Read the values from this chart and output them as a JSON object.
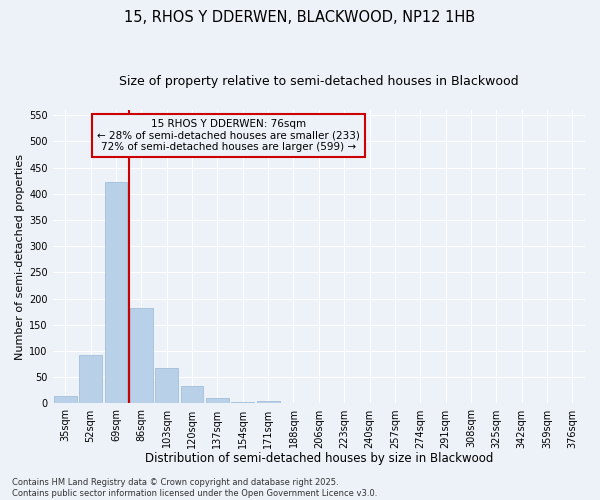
{
  "title1": "15, RHOS Y DDERWEN, BLACKWOOD, NP12 1HB",
  "title2": "Size of property relative to semi-detached houses in Blackwood",
  "xlabel": "Distribution of semi-detached houses by size in Blackwood",
  "ylabel": "Number of semi-detached properties",
  "categories": [
    "35sqm",
    "52sqm",
    "69sqm",
    "86sqm",
    "103sqm",
    "120sqm",
    "137sqm",
    "154sqm",
    "171sqm",
    "188sqm",
    "206sqm",
    "223sqm",
    "240sqm",
    "257sqm",
    "274sqm",
    "291sqm",
    "308sqm",
    "325sqm",
    "342sqm",
    "359sqm",
    "376sqm"
  ],
  "values": [
    15,
    92,
    422,
    183,
    68,
    33,
    11,
    2,
    5,
    0,
    0,
    0,
    0,
    0,
    0,
    0,
    1,
    0,
    0,
    0,
    1
  ],
  "bar_color": "#b8d0e8",
  "bar_edge_color": "#9ab8d8",
  "red_line_x": 2.5,
  "red_line_color": "#cc0000",
  "annotation_line1": "15 RHOS Y DDERWEN: 76sqm",
  "annotation_line2": "← 28% of semi-detached houses are smaller (233)",
  "annotation_line3": "72% of semi-detached houses are larger (599) →",
  "annotation_box_color": "#cc0000",
  "ylim": [
    0,
    560
  ],
  "yticks": [
    0,
    50,
    100,
    150,
    200,
    250,
    300,
    350,
    400,
    450,
    500,
    550
  ],
  "bg_color": "#edf2f8",
  "grid_color": "#ffffff",
  "footer": "Contains HM Land Registry data © Crown copyright and database right 2025.\nContains public sector information licensed under the Open Government Licence v3.0.",
  "title1_fontsize": 10.5,
  "title2_fontsize": 9,
  "xlabel_fontsize": 8.5,
  "ylabel_fontsize": 8,
  "tick_fontsize": 7,
  "annotation_fontsize": 7.5,
  "footer_fontsize": 6
}
